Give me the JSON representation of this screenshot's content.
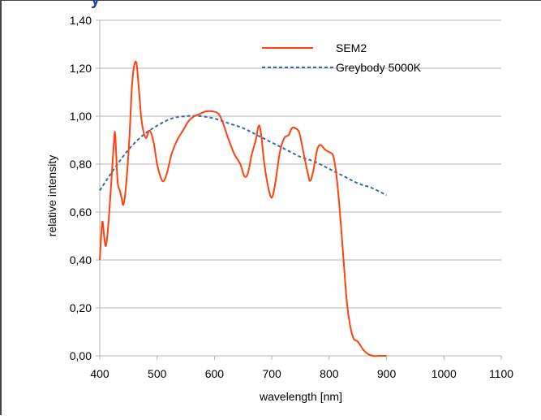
{
  "header_fragment": "y",
  "chart_data": {
    "type": "line",
    "title": "",
    "xlabel": "wavelength [nm]",
    "ylabel": "relative intensity",
    "xlim": [
      400,
      1100
    ],
    "ylim": [
      0,
      1.4
    ],
    "x_ticks": [
      400,
      500,
      600,
      700,
      800,
      900,
      1000,
      1100
    ],
    "y_ticks": [
      0,
      0.2,
      0.4,
      0.6,
      0.8,
      1.0,
      1.2,
      1.4
    ],
    "y_tick_labels": [
      "0,00",
      "0,20",
      "0,40",
      "0,60",
      "0,80",
      "1,00",
      "1,20",
      "1,40"
    ],
    "grid": "horizontal",
    "legend_position": "top-right",
    "series": [
      {
        "name": "SEM2",
        "style": "solid",
        "color": "#ff420e",
        "points": [
          [
            400,
            0.4
          ],
          [
            403,
            0.52
          ],
          [
            405,
            0.56
          ],
          [
            408,
            0.49
          ],
          [
            411,
            0.46
          ],
          [
            415,
            0.55
          ],
          [
            420,
            0.72
          ],
          [
            425,
            0.9
          ],
          [
            427,
            0.92
          ],
          [
            431,
            0.73
          ],
          [
            435,
            0.69
          ],
          [
            438,
            0.66
          ],
          [
            441,
            0.63
          ],
          [
            445,
            0.69
          ],
          [
            451,
            0.88
          ],
          [
            456,
            1.12
          ],
          [
            460,
            1.21
          ],
          [
            464,
            1.22
          ],
          [
            468,
            1.12
          ],
          [
            473,
            0.98
          ],
          [
            480,
            0.91
          ],
          [
            487,
            0.94
          ],
          [
            494,
            0.89
          ],
          [
            500,
            0.8
          ],
          [
            507,
            0.74
          ],
          [
            512,
            0.73
          ],
          [
            518,
            0.77
          ],
          [
            525,
            0.84
          ],
          [
            535,
            0.9
          ],
          [
            545,
            0.94
          ],
          [
            555,
            0.98
          ],
          [
            565,
            1.0
          ],
          [
            575,
            1.01
          ],
          [
            585,
            1.02
          ],
          [
            597,
            1.02
          ],
          [
            607,
            1.01
          ],
          [
            615,
            0.97
          ],
          [
            625,
            0.9
          ],
          [
            635,
            0.84
          ],
          [
            645,
            0.8
          ],
          [
            652,
            0.75
          ],
          [
            658,
            0.76
          ],
          [
            665,
            0.84
          ],
          [
            672,
            0.9
          ],
          [
            677,
            0.96
          ],
          [
            681,
            0.93
          ],
          [
            687,
            0.8
          ],
          [
            694,
            0.7
          ],
          [
            700,
            0.66
          ],
          [
            706,
            0.72
          ],
          [
            714,
            0.85
          ],
          [
            722,
            0.91
          ],
          [
            729,
            0.92
          ],
          [
            735,
            0.95
          ],
          [
            741,
            0.95
          ],
          [
            748,
            0.93
          ],
          [
            755,
            0.85
          ],
          [
            762,
            0.77
          ],
          [
            767,
            0.73
          ],
          [
            773,
            0.78
          ],
          [
            779,
            0.86
          ],
          [
            785,
            0.88
          ],
          [
            793,
            0.86
          ],
          [
            800,
            0.85
          ],
          [
            806,
            0.84
          ],
          [
            810,
            0.8
          ],
          [
            815,
            0.7
          ],
          [
            820,
            0.56
          ],
          [
            826,
            0.37
          ],
          [
            831,
            0.22
          ],
          [
            837,
            0.12
          ],
          [
            843,
            0.07
          ],
          [
            850,
            0.06
          ],
          [
            858,
            0.03
          ],
          [
            866,
            0.01
          ],
          [
            876,
            0.0
          ],
          [
            890,
            0.0
          ],
          [
            900,
            0.0
          ]
        ]
      },
      {
        "name": "Greybody 5000K",
        "style": "dashed",
        "color": "#2e6daa",
        "points": [
          [
            400,
            0.69
          ],
          [
            425,
            0.78
          ],
          [
            450,
            0.86
          ],
          [
            475,
            0.92
          ],
          [
            500,
            0.96
          ],
          [
            525,
            0.99
          ],
          [
            550,
            1.0
          ],
          [
            575,
            1.0
          ],
          [
            600,
            0.99
          ],
          [
            625,
            0.97
          ],
          [
            650,
            0.95
          ],
          [
            675,
            0.92
          ],
          [
            700,
            0.89
          ],
          [
            725,
            0.86
          ],
          [
            750,
            0.83
          ],
          [
            775,
            0.81
          ],
          [
            800,
            0.78
          ],
          [
            825,
            0.75
          ],
          [
            850,
            0.72
          ],
          [
            875,
            0.7
          ],
          [
            900,
            0.67
          ]
        ]
      }
    ]
  }
}
